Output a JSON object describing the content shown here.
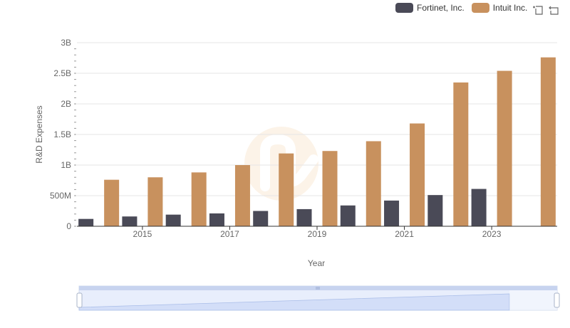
{
  "colors": {
    "fortinet": "#4a4a57",
    "intuit": "#c8915e"
  },
  "toolbox": {
    "zoom_icon": "zoom-icon",
    "restore_icon": "restore-icon"
  },
  "chart_data": {
    "type": "bar",
    "title": "",
    "xlabel": "Year",
    "ylabel": "R&D Expenses",
    "ylim": [
      0,
      3000000000
    ],
    "y_ticks": [
      0,
      500000000,
      1000000000,
      1500000000,
      2000000000,
      2500000000,
      3000000000
    ],
    "y_tick_labels": [
      "0",
      "500M",
      "1B",
      "1.5B",
      "2B",
      "2.5B",
      "3B"
    ],
    "categories": [
      "2014",
      "2015",
      "2016",
      "2017",
      "2018",
      "2019",
      "2020",
      "2021",
      "2022",
      "2023",
      "2024"
    ],
    "x_tick_labels": [
      "2015",
      "2017",
      "2019",
      "2021",
      "2023"
    ],
    "grid": true,
    "legend_position": "top-right",
    "series": [
      {
        "name": "Fortinet, Inc.",
        "values": [
          120000000,
          160000000,
          190000000,
          210000000,
          250000000,
          280000000,
          340000000,
          420000000,
          510000000,
          610000000,
          null
        ]
      },
      {
        "name": "Intuit Inc.",
        "values": [
          760000000,
          800000000,
          880000000,
          1000000000,
          1190000000,
          1230000000,
          1390000000,
          1680000000,
          2350000000,
          2540000000,
          2760000000
        ]
      }
    ]
  }
}
